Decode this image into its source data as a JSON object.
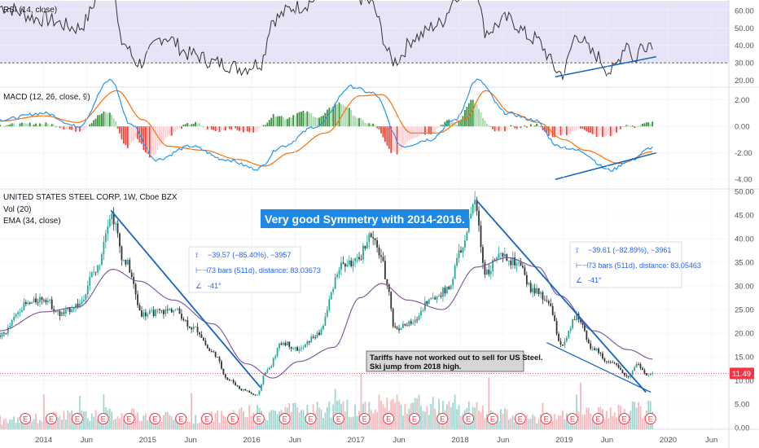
{
  "colors": {
    "bg": "#ffffff",
    "grid": "#eef0f3",
    "rsi_band": "#e8e3f7",
    "rsi_line": "#333333",
    "macd_line": "#2196f3",
    "signal_line": "#ff6d00",
    "hist_up_strong": "#26a69a",
    "hist_up_weak": "#b2dfdb",
    "hist_dn_strong": "#f23645",
    "hist_dn_weak": "#ffcdd2",
    "hist_green_strong": "#388e3c",
    "hist_green_weak": "#a5d6a7",
    "hist_red_strong": "#f44336",
    "hist_red_weak": "#ffcdd2",
    "candle_up": "#26a69a",
    "candle_down": "#333333",
    "ema": "#7b4f9d",
    "trend": "#1565c0",
    "price_line": "#f23645",
    "vol_up": "#9fd6d0",
    "vol_down": "#f7b8bd",
    "earn_circle": "#f23645",
    "label_bg": "#1e88e5",
    "note_bg": "#d6d6d6"
  },
  "rsi_pane": {
    "title": "RSI (14, close)",
    "ticks": [
      "60.00",
      "50.00",
      "40.00",
      "30.00",
      "20.00"
    ]
  },
  "macd_pane": {
    "title": "MACD (12, 26, close, 9)",
    "ticks": [
      "2.00",
      "0.00",
      "-2.00",
      "-4.00"
    ]
  },
  "price_pane": {
    "title": "UNITED STATES STEEL CORP, 1W, Cboe BZX",
    "vol_label": "Vol (20)",
    "ema_label": "EMA (34, close)",
    "ticks": [
      "50.00",
      "45.00",
      "40.00",
      "35.00",
      "30.00",
      "25.00",
      "20.00",
      "15.00",
      "10.00",
      "5.00",
      "0.00"
    ],
    "last_price": "11.49"
  },
  "x_axis": {
    "ticks": [
      "2014",
      "Jun",
      "2015",
      "Jun",
      "2016",
      "Jun",
      "2017",
      "Jun",
      "2018",
      "Jun",
      "2019",
      "Jun",
      "2020",
      "Jun"
    ]
  },
  "annotations": {
    "headline": "Very good Symmetry with 2014-2016.",
    "note_line1": "Tariffs have not worked out to sell for US Steel.",
    "note_line2": "Ski jump from 2018 high.",
    "measure_left": {
      "line1": "−39.57 (−85.40%), −3957",
      "line2": "73 bars (511d), distance: 83.03673",
      "line3": "-41°"
    },
    "measure_right": {
      "line1": "−39.61 (−82.89%), −3961",
      "line2": "73 bars (511d), distance: 83.05463",
      "line3": "-41°"
    },
    "earnings_marker": "E"
  },
  "chart_data": {
    "type": "line",
    "timeframe": "1W",
    "price_knots": [
      [
        "2013-08-01",
        19.5
      ],
      [
        "2013-11-01",
        26.0
      ],
      [
        "2014-01-01",
        27.5
      ],
      [
        "2014-03-01",
        24.0
      ],
      [
        "2014-05-01",
        26.0
      ],
      [
        "2014-07-01",
        33.0
      ],
      [
        "2014-08-25",
        45.0
      ],
      [
        "2014-10-15",
        35.0
      ],
      [
        "2014-12-15",
        24.0
      ],
      [
        "2015-02-15",
        24.5
      ],
      [
        "2015-04-01",
        25.0
      ],
      [
        "2015-06-15",
        21.0
      ],
      [
        "2015-08-15",
        16.0
      ],
      [
        "2015-10-15",
        10.0
      ],
      [
        "2015-12-01",
        8.0
      ],
      [
        "2016-01-20",
        6.8
      ],
      [
        "2016-02-20",
        12.0
      ],
      [
        "2016-04-20",
        18.0
      ],
      [
        "2016-06-15",
        16.5
      ],
      [
        "2016-08-15",
        19.5
      ],
      [
        "2016-11-15",
        34.5
      ],
      [
        "2017-01-01",
        35.0
      ],
      [
        "2017-02-20",
        40.5
      ],
      [
        "2017-03-25",
        37.0
      ],
      [
        "2017-04-20",
        31.0
      ],
      [
        "2017-05-15",
        21.0
      ],
      [
        "2017-07-15",
        22.0
      ],
      [
        "2017-09-15",
        27.0
      ],
      [
        "2017-11-15",
        29.0
      ],
      [
        "2018-01-10",
        38.0
      ],
      [
        "2018-02-20",
        47.5
      ],
      [
        "2018-04-01",
        33.0
      ],
      [
        "2018-05-15",
        36.0
      ],
      [
        "2018-07-15",
        35.0
      ],
      [
        "2018-09-15",
        29.0
      ],
      [
        "2018-11-01",
        27.0
      ],
      [
        "2018-12-25",
        17.5
      ],
      [
        "2019-02-15",
        23.5
      ],
      [
        "2019-04-15",
        16.5
      ],
      [
        "2019-06-15",
        13.5
      ],
      [
        "2019-08-15",
        11.0
      ],
      [
        "2019-09-15",
        13.5
      ],
      [
        "2019-10-20",
        11.0
      ],
      [
        "2019-11-08",
        11.5
      ]
    ],
    "ema_knots": [
      [
        "2013-08-01",
        20.5
      ],
      [
        "2014-01-01",
        24.5
      ],
      [
        "2014-05-01",
        25.5
      ],
      [
        "2014-09-01",
        33.5
      ],
      [
        "2014-12-01",
        31.0
      ],
      [
        "2015-04-01",
        27.0
      ],
      [
        "2015-08-15",
        22.0
      ],
      [
        "2015-12-15",
        13.5
      ],
      [
        "2016-03-15",
        10.5
      ],
      [
        "2016-06-15",
        14.0
      ],
      [
        "2016-10-15",
        17.0
      ],
      [
        "2017-01-15",
        27.5
      ],
      [
        "2017-04-01",
        30.5
      ],
      [
        "2017-07-01",
        27.0
      ],
      [
        "2017-11-01",
        25.0
      ],
      [
        "2018-03-01",
        34.0
      ],
      [
        "2018-06-15",
        36.0
      ],
      [
        "2018-10-01",
        34.0
      ],
      [
        "2018-12-15",
        28.0
      ],
      [
        "2019-04-15",
        20.5
      ],
      [
        "2019-08-15",
        16.5
      ],
      [
        "2019-11-08",
        14.5
      ]
    ],
    "rsi_knots": [
      [
        "2013-08-01",
        62
      ],
      [
        "2014-01-01",
        55
      ],
      [
        "2014-05-01",
        50
      ],
      [
        "2014-08-25",
        80
      ],
      [
        "2014-10-01",
        42
      ],
      [
        "2014-12-01",
        30
      ],
      [
        "2015-03-01",
        45
      ],
      [
        "2015-06-01",
        35
      ],
      [
        "2015-09-01",
        30
      ],
      [
        "2015-12-01",
        27
      ],
      [
        "2016-02-01",
        30
      ],
      [
        "2016-03-15",
        55
      ],
      [
        "2016-06-01",
        62
      ],
      [
        "2016-11-15",
        75
      ],
      [
        "2017-02-15",
        65
      ],
      [
        "2017-05-15",
        31
      ],
      [
        "2017-08-01",
        45
      ],
      [
        "2017-10-15",
        52
      ],
      [
        "2018-01-01",
        70
      ],
      [
        "2018-02-20",
        78
      ],
      [
        "2018-04-01",
        48
      ],
      [
        "2018-06-15",
        55
      ],
      [
        "2018-09-15",
        44
      ],
      [
        "2018-12-25",
        24
      ],
      [
        "2019-02-15",
        46
      ],
      [
        "2019-04-15",
        35
      ],
      [
        "2019-06-15",
        25
      ],
      [
        "2019-08-15",
        42
      ],
      [
        "2019-09-01",
        30
      ],
      [
        "2019-10-01",
        40
      ],
      [
        "2019-11-08",
        42
      ]
    ],
    "macd_knots": [
      [
        "2013-08-01",
        0.5
      ],
      [
        "2014-01-01",
        1.0
      ],
      [
        "2014-05-01",
        0.0
      ],
      [
        "2014-08-25",
        3.5
      ],
      [
        "2014-11-01",
        0.2
      ],
      [
        "2015-02-01",
        -2.5
      ],
      [
        "2015-06-01",
        -1.5
      ],
      [
        "2015-10-01",
        -2.5
      ],
      [
        "2016-01-20",
        -3.2
      ],
      [
        "2016-04-15",
        -1.5
      ],
      [
        "2016-08-15",
        0.0
      ],
      [
        "2016-12-15",
        3.0
      ],
      [
        "2017-03-01",
        2.5
      ],
      [
        "2017-06-15",
        -1.5
      ],
      [
        "2017-09-15",
        -1.0
      ],
      [
        "2017-12-15",
        0.5
      ],
      [
        "2018-03-01",
        3.5
      ],
      [
        "2018-06-15",
        1.0
      ],
      [
        "2018-09-15",
        0.5
      ],
      [
        "2018-12-15",
        -1.5
      ],
      [
        "2019-02-15",
        -1.8
      ],
      [
        "2019-06-15",
        -3.3
      ],
      [
        "2019-08-15",
        -2.6
      ],
      [
        "2019-11-08",
        -1.6
      ]
    ],
    "signal_knots": [
      [
        "2013-08-01",
        0.4
      ],
      [
        "2014-01-01",
        0.8
      ],
      [
        "2014-05-01",
        0.3
      ],
      [
        "2014-09-15",
        2.7
      ],
      [
        "2014-12-15",
        0.5
      ],
      [
        "2015-03-15",
        -1.5
      ],
      [
        "2015-07-15",
        -1.8
      ],
      [
        "2015-11-15",
        -2.5
      ],
      [
        "2016-02-15",
        -3.0
      ],
      [
        "2016-05-15",
        -2.0
      ],
      [
        "2016-09-15",
        -0.5
      ],
      [
        "2017-01-15",
        2.3
      ],
      [
        "2017-04-01",
        2.4
      ],
      [
        "2017-07-15",
        -0.5
      ],
      [
        "2017-10-15",
        -0.5
      ],
      [
        "2018-01-15",
        0.5
      ],
      [
        "2018-04-01",
        2.7
      ],
      [
        "2018-07-01",
        1.0
      ],
      [
        "2018-10-01",
        0.3
      ],
      [
        "2019-01-01",
        -1.0
      ],
      [
        "2019-03-15",
        -1.8
      ],
      [
        "2019-07-15",
        -2.8
      ],
      [
        "2019-11-08",
        -1.9
      ]
    ],
    "volume_knots": [
      [
        "2013-08-01",
        2.5
      ],
      [
        "2014-08-25",
        4.0
      ],
      [
        "2015-06-01",
        3.0
      ],
      [
        "2016-02-15",
        4.5
      ],
      [
        "2016-11-15",
        5.5
      ],
      [
        "2017-05-01",
        7.0
      ],
      [
        "2018-03-01",
        5.0
      ],
      [
        "2018-09-01",
        3.0
      ],
      [
        "2019-04-01",
        4.0
      ],
      [
        "2019-11-08",
        5.5
      ]
    ],
    "earnings_dates": [
      "2013-10-29",
      "2014-01-28",
      "2014-04-29",
      "2014-07-29",
      "2014-10-28",
      "2015-01-27",
      "2015-04-28",
      "2015-07-28",
      "2015-10-27",
      "2016-01-26",
      "2016-04-26",
      "2016-07-26",
      "2016-11-01",
      "2017-01-31",
      "2017-04-25",
      "2017-07-25",
      "2017-10-31",
      "2018-01-30",
      "2018-04-25",
      "2018-07-31",
      "2018-10-30",
      "2019-01-30",
      "2019-04-30",
      "2019-07-31",
      "2019-10-31"
    ],
    "trendlines": {
      "price_left": [
        [
          "2014-08-25",
          46.0
        ],
        [
          "2016-02-01",
          8.5
        ]
      ],
      "price_right": [
        [
          "2018-03-01",
          48.0
        ],
        [
          "2019-10-15",
          7.5
        ]
      ],
      "price_support": [
        [
          "2018-11-01",
          18.0
        ],
        [
          "2019-11-01",
          7.5
        ]
      ],
      "rsi_support": [
        [
          "2018-12-01",
          22.0
        ],
        [
          "2019-11-20",
          33.5
        ]
      ],
      "macd_support": [
        [
          "2018-12-01",
          -4.0
        ],
        [
          "2019-11-20",
          -2.0
        ]
      ]
    },
    "rsi_reference_level": 30,
    "rsi_ylim": [
      17,
      66
    ],
    "macd_ylim": [
      -4.6,
      2.9
    ],
    "price_ylim": [
      0,
      50
    ],
    "volume_max": 12
  }
}
